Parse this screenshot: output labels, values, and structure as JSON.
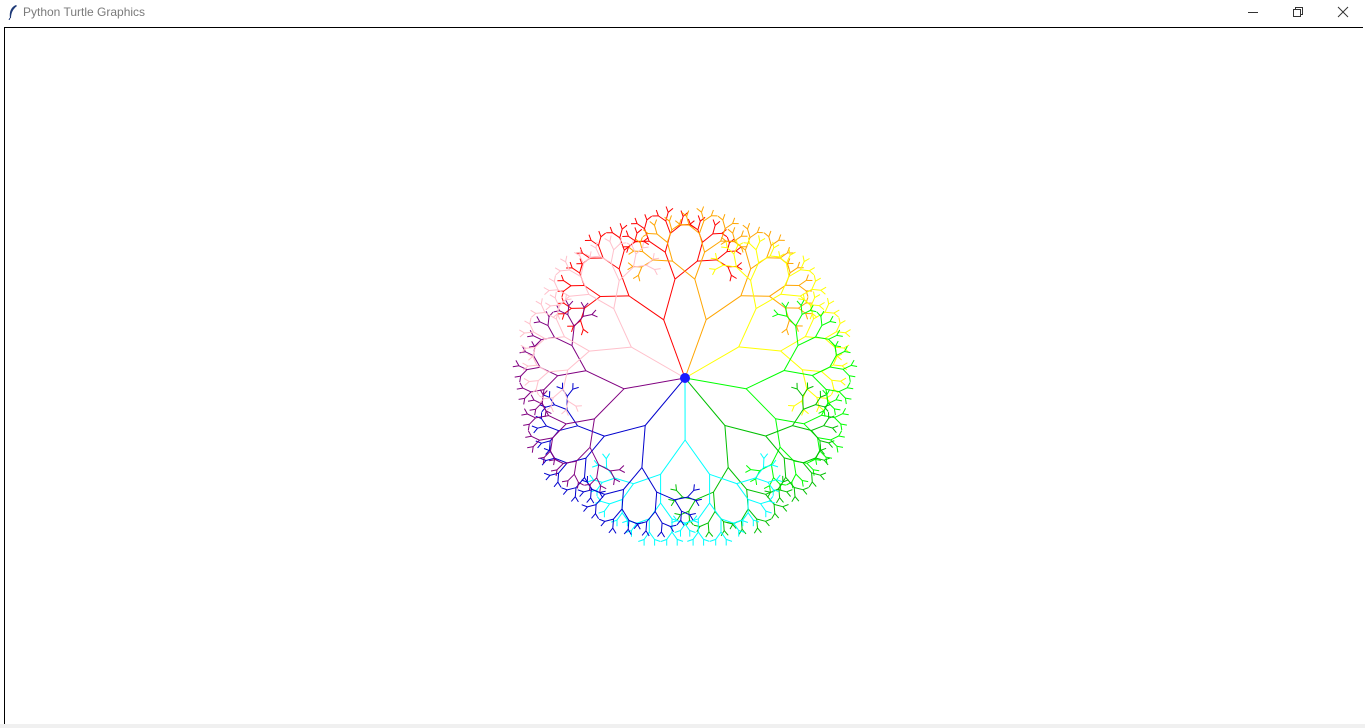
{
  "window": {
    "title": "Python Turtle Graphics",
    "icon": "feather-icon",
    "controls": {
      "minimize_icon": "minimize-icon",
      "restore_icon": "restore-icon",
      "close_icon": "close-icon"
    }
  },
  "canvas": {
    "background": "#ffffff",
    "drawing": "radial-fractal-tree",
    "branch_colors": [
      "#ff0000",
      "#ffa500",
      "#ffff00",
      "#00ff00",
      "#00c000",
      "#00ffff",
      "#0000cd",
      "#800080",
      "#ffc0cb"
    ]
  }
}
